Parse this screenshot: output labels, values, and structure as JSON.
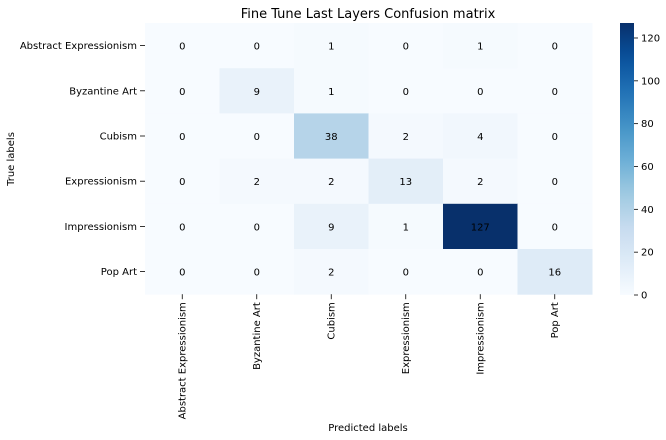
{
  "chart_data": {
    "type": "heatmap",
    "title": "Fine Tune Last Layers Confusion matrix",
    "xlabel": "Predicted labels",
    "ylabel": "True labels",
    "x_categories": [
      "Abstract Expressionism",
      "Byzantine Art",
      "Cubism",
      "Expressionism",
      "Impressionism",
      "Pop Art"
    ],
    "y_categories": [
      "Abstract Expressionism",
      "Byzantine Art",
      "Cubism",
      "Expressionism",
      "Impressionism",
      "Pop Art"
    ],
    "values": [
      [
        0,
        0,
        1,
        0,
        1,
        0
      ],
      [
        0,
        9,
        1,
        0,
        0,
        0
      ],
      [
        0,
        0,
        38,
        2,
        4,
        0
      ],
      [
        0,
        2,
        2,
        13,
        2,
        0
      ],
      [
        0,
        0,
        9,
        1,
        127,
        0
      ],
      [
        0,
        0,
        2,
        0,
        0,
        16
      ]
    ],
    "colormap": "Blues",
    "colorbar": {
      "min": 0,
      "max": 127,
      "ticks": [
        0,
        20,
        40,
        60,
        80,
        100,
        120
      ]
    }
  }
}
